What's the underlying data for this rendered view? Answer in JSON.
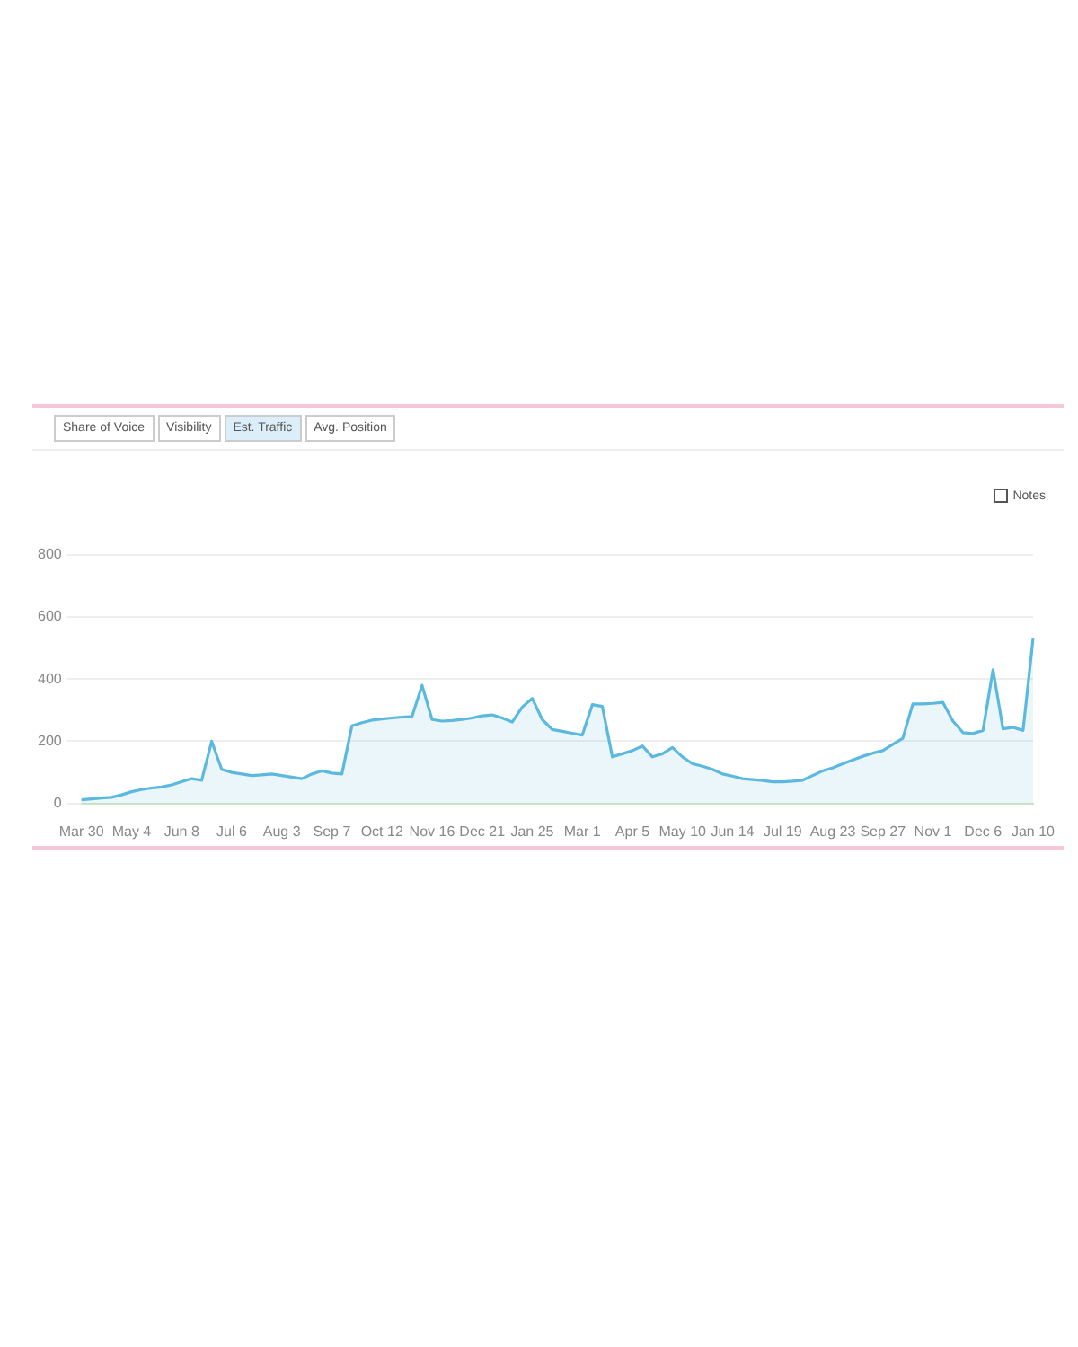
{
  "chart_data": {
    "type": "area",
    "annotations": [
      "Share of Voice",
      "Visibility",
      "Est. Traffic",
      "Avg. Position",
      "Notes"
    ],
    "categories": [
      "Mar 30",
      null,
      null,
      null,
      null,
      "May 4",
      null,
      null,
      null,
      null,
      "Jun 8",
      null,
      null,
      null,
      null,
      "Jul 6",
      null,
      null,
      null,
      null,
      "Aug 3",
      null,
      null,
      null,
      null,
      "Sep 7",
      null,
      null,
      null,
      null,
      "Oct 12",
      null,
      null,
      null,
      null,
      "Nov 16",
      null,
      null,
      null,
      null,
      "Dec 21",
      null,
      null,
      null,
      null,
      "Jan 25",
      null,
      null,
      null,
      null,
      "Mar 1",
      null,
      null,
      null,
      null,
      "Apr 5",
      null,
      null,
      null,
      null,
      "May 10",
      null,
      null,
      null,
      null,
      "Jun 14",
      null,
      null,
      null,
      null,
      "Jul 19",
      null,
      null,
      null,
      null,
      "Aug 23",
      null,
      null,
      null,
      null,
      "Sep 27",
      null,
      null,
      null,
      null,
      "Nov 1",
      null,
      null,
      null,
      null,
      "Dec 6",
      null,
      null,
      null,
      null,
      "Jan 10"
    ],
    "series": [
      {
        "color": "#5bb9e0",
        "values": [
          12,
          15,
          18,
          20,
          28,
          38,
          45,
          50,
          53,
          60,
          70,
          80,
          75,
          200,
          110,
          100,
          95,
          90,
          92,
          95,
          90,
          85,
          80,
          95,
          105,
          98,
          95,
          250,
          260,
          268,
          272,
          275,
          278,
          280,
          380,
          270,
          265,
          267,
          270,
          275,
          282,
          285,
          275,
          262,
          310,
          338,
          270,
          238,
          232,
          226,
          220,
          318,
          312,
          150,
          160,
          170,
          185,
          150,
          160,
          180,
          150,
          128,
          120,
          110,
          95,
          88,
          80,
          77,
          74,
          70,
          70,
          72,
          75,
          90,
          105,
          115,
          128,
          140,
          152,
          162,
          170,
          190,
          210,
          320,
          320,
          322,
          325,
          265,
          228,
          225,
          235,
          430,
          240,
          245,
          235,
          530
        ]
      }
    ],
    "ylim": [
      0,
      800
    ],
    "yticks": [
      0,
      200,
      400,
      600,
      800
    ],
    "grid": "y",
    "marker": "none"
  }
}
